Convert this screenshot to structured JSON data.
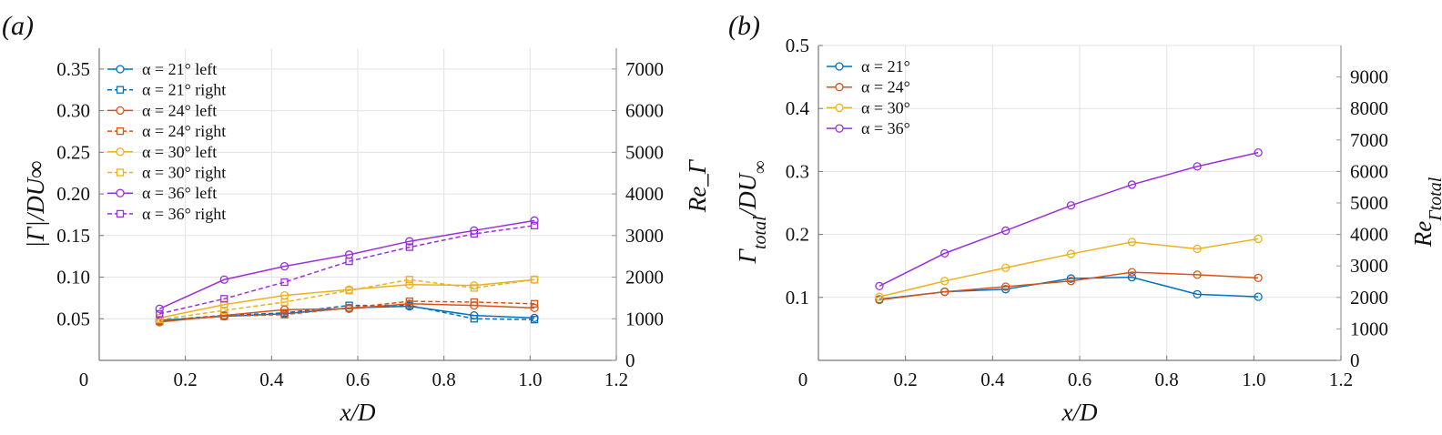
{
  "chart_data": [
    {
      "type": "line",
      "panel_label": "(a)",
      "xlabel": "x/D",
      "ylabel": "|Γ|/DU∞",
      "ylabel_right": "Re_Γ",
      "xlim": [
        0,
        1.2
      ],
      "ylim": [
        0,
        0.375
      ],
      "ylim_right": [
        0,
        7500
      ],
      "xticks": [
        "0",
        "0.2",
        "0.4",
        "0.6",
        "0.8",
        "1.0",
        "1.2"
      ],
      "yticks": [
        "0.05",
        "0.10",
        "0.15",
        "0.20",
        "0.25",
        "0.30",
        "0.35"
      ],
      "yticks_right": [
        "0",
        "1000",
        "2000",
        "3000",
        "4000",
        "5000",
        "6000",
        "7000"
      ],
      "grid": true,
      "legend_position": "top-left",
      "x": [
        0.14,
        0.29,
        0.43,
        0.58,
        0.72,
        0.87,
        1.01
      ],
      "series": [
        {
          "name": "α = 21° left",
          "color": "#0072BD",
          "style": "solid",
          "marker": "circle",
          "values": [
            0.048,
            0.053,
            0.056,
            0.063,
            0.065,
            0.054,
            0.051
          ]
        },
        {
          "name": "α = 21° right",
          "color": "#0072BD",
          "style": "dashed",
          "marker": "square",
          "values": [
            0.048,
            0.054,
            0.057,
            0.066,
            0.066,
            0.05,
            0.049
          ]
        },
        {
          "name": "α = 24° left",
          "color": "#D95319",
          "style": "solid",
          "marker": "circle",
          "values": [
            0.046,
            0.054,
            0.061,
            0.062,
            0.068,
            0.066,
            0.063
          ]
        },
        {
          "name": "α = 24° right",
          "color": "#D95319",
          "style": "dashed",
          "marker": "square",
          "values": [
            0.047,
            0.053,
            0.055,
            0.063,
            0.071,
            0.07,
            0.068
          ]
        },
        {
          "name": "α = 30° left",
          "color": "#EDB120",
          "style": "solid",
          "marker": "circle",
          "values": [
            0.051,
            0.067,
            0.078,
            0.085,
            0.091,
            0.09,
            0.097
          ]
        },
        {
          "name": "α = 30° right",
          "color": "#EDB120",
          "style": "dashed",
          "marker": "square",
          "values": [
            0.049,
            0.06,
            0.07,
            0.084,
            0.097,
            0.087,
            0.097
          ]
        },
        {
          "name": "α = 36° left",
          "color": "#9B2FE0",
          "style": "solid",
          "marker": "circle",
          "values": [
            0.062,
            0.097,
            0.113,
            0.127,
            0.143,
            0.156,
            0.168
          ]
        },
        {
          "name": "α = 36° right",
          "color": "#9B2FE0",
          "style": "dashed",
          "marker": "square",
          "values": [
            0.056,
            0.074,
            0.094,
            0.119,
            0.136,
            0.152,
            0.162
          ]
        }
      ]
    },
    {
      "type": "line",
      "panel_label": "(b)",
      "xlabel": "x/D",
      "ylabel": "Γ_total/DU∞",
      "ylabel_right": "Re_Γtotal",
      "xlim": [
        0,
        1.2
      ],
      "ylim": [
        0,
        0.5
      ],
      "ylim_right": [
        0,
        10000
      ],
      "xticks": [
        "0",
        "0.2",
        "0.4",
        "0.6",
        "0.8",
        "1.0",
        "1.2"
      ],
      "yticks": [
        "0.1",
        "0.2",
        "0.3",
        "0.4",
        "0.5"
      ],
      "yticks_right": [
        "0",
        "1000",
        "2000",
        "3000",
        "4000",
        "5000",
        "6000",
        "7000",
        "8000",
        "9000"
      ],
      "grid": true,
      "legend_position": "top-left",
      "x": [
        0.14,
        0.29,
        0.43,
        0.58,
        0.72,
        0.87,
        1.01
      ],
      "series": [
        {
          "name": "α = 21°",
          "color": "#0072BD",
          "style": "solid",
          "marker": "circle",
          "values": [
            0.097,
            0.109,
            0.113,
            0.13,
            0.132,
            0.105,
            0.101
          ]
        },
        {
          "name": "α = 24°",
          "color": "#D95319",
          "style": "solid",
          "marker": "circle",
          "values": [
            0.096,
            0.109,
            0.117,
            0.126,
            0.14,
            0.136,
            0.131
          ]
        },
        {
          "name": "α = 30°",
          "color": "#EDB120",
          "style": "solid",
          "marker": "circle",
          "values": [
            0.101,
            0.126,
            0.147,
            0.169,
            0.188,
            0.177,
            0.193
          ]
        },
        {
          "name": "α = 36°",
          "color": "#9B2FE0",
          "style": "solid",
          "marker": "circle",
          "values": [
            0.118,
            0.17,
            0.206,
            0.246,
            0.279,
            0.308,
            0.33
          ]
        }
      ]
    }
  ]
}
